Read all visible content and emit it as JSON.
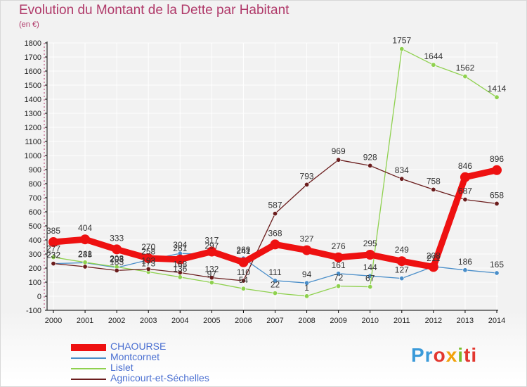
{
  "header": {
    "title": "Evolution du Montant de la Dette par Habitant",
    "subtitle": "(en €)"
  },
  "colors": {
    "title": "#b03a6a",
    "background": "#f2f2f2",
    "grid": "#ffffff",
    "axis": "#000000"
  },
  "logo": {
    "parts": [
      "Pr",
      "o",
      "x",
      "i",
      "ti"
    ]
  },
  "chart_data": {
    "type": "line",
    "title": "Evolution du Montant de la Dette par Habitant",
    "ylabel": "(en €)",
    "xlabel": "",
    "ylim": [
      -100,
      1800
    ],
    "yticks": [
      -100,
      0,
      100,
      200,
      300,
      400,
      500,
      600,
      700,
      800,
      900,
      1000,
      1100,
      1200,
      1300,
      1400,
      1500,
      1600,
      1700,
      1800
    ],
    "x": [
      "2000",
      "2001",
      "2002",
      "2003",
      "2004",
      "2005",
      "2006",
      "2007",
      "2008",
      "2009",
      "2010",
      "2011",
      "2012",
      "2013",
      "2014"
    ],
    "grid": true,
    "legend_position": "bottom-left",
    "series": [
      {
        "name": "CHAOURSE",
        "color": "#ee1111",
        "emphasis": true,
        "values": [
          385,
          404,
          333,
          270,
          261,
          317,
          241,
          368,
          327,
          276,
          295,
          249,
          208,
          846,
          896
        ],
        "labels": [
          "385",
          "404",
          "333",
          "270",
          "261",
          "317",
          "241",
          "368",
          "327",
          "276",
          "295",
          "249",
          "208",
          "846",
          "896"
        ]
      },
      {
        "name": "Montcornet",
        "color": "#4a8ec9",
        "emphasis": false,
        "values": [
          232,
          238,
          203,
          258,
          304,
          297,
          269,
          111,
          94,
          161,
          144,
          127,
          211,
          186,
          165
        ],
        "labels": [
          "232",
          "238",
          "203",
          "258",
          "304",
          "297",
          "269",
          "111",
          "94",
          "161",
          "144",
          "127",
          "211",
          "186",
          "165"
        ]
      },
      {
        "name": "Lislet",
        "color": "#8fd14f",
        "emphasis": false,
        "values": [
          277,
          241,
          208,
          173,
          136,
          97,
          54,
          22,
          1,
          72,
          67,
          1757,
          1644,
          1562,
          1414
        ],
        "labels": [
          "277",
          "241",
          "208",
          "173",
          "136",
          "97",
          "54",
          "22",
          "1",
          "72",
          "67",
          "1757",
          "1644",
          "1562",
          "1414"
        ]
      },
      {
        "name": "Agnicourt-et-Séchelles",
        "color": "#6b1d1d",
        "emphasis": false,
        "values": [
          232,
          210,
          183,
          193,
          168,
          132,
          110,
          587,
          793,
          969,
          928,
          834,
          758,
          687,
          658
        ],
        "labels": [
          "232",
          "",
          "183",
          "193",
          "168",
          "132",
          "110",
          "587",
          "793",
          "969",
          "928",
          "834",
          "758",
          "687",
          "658"
        ]
      }
    ]
  }
}
